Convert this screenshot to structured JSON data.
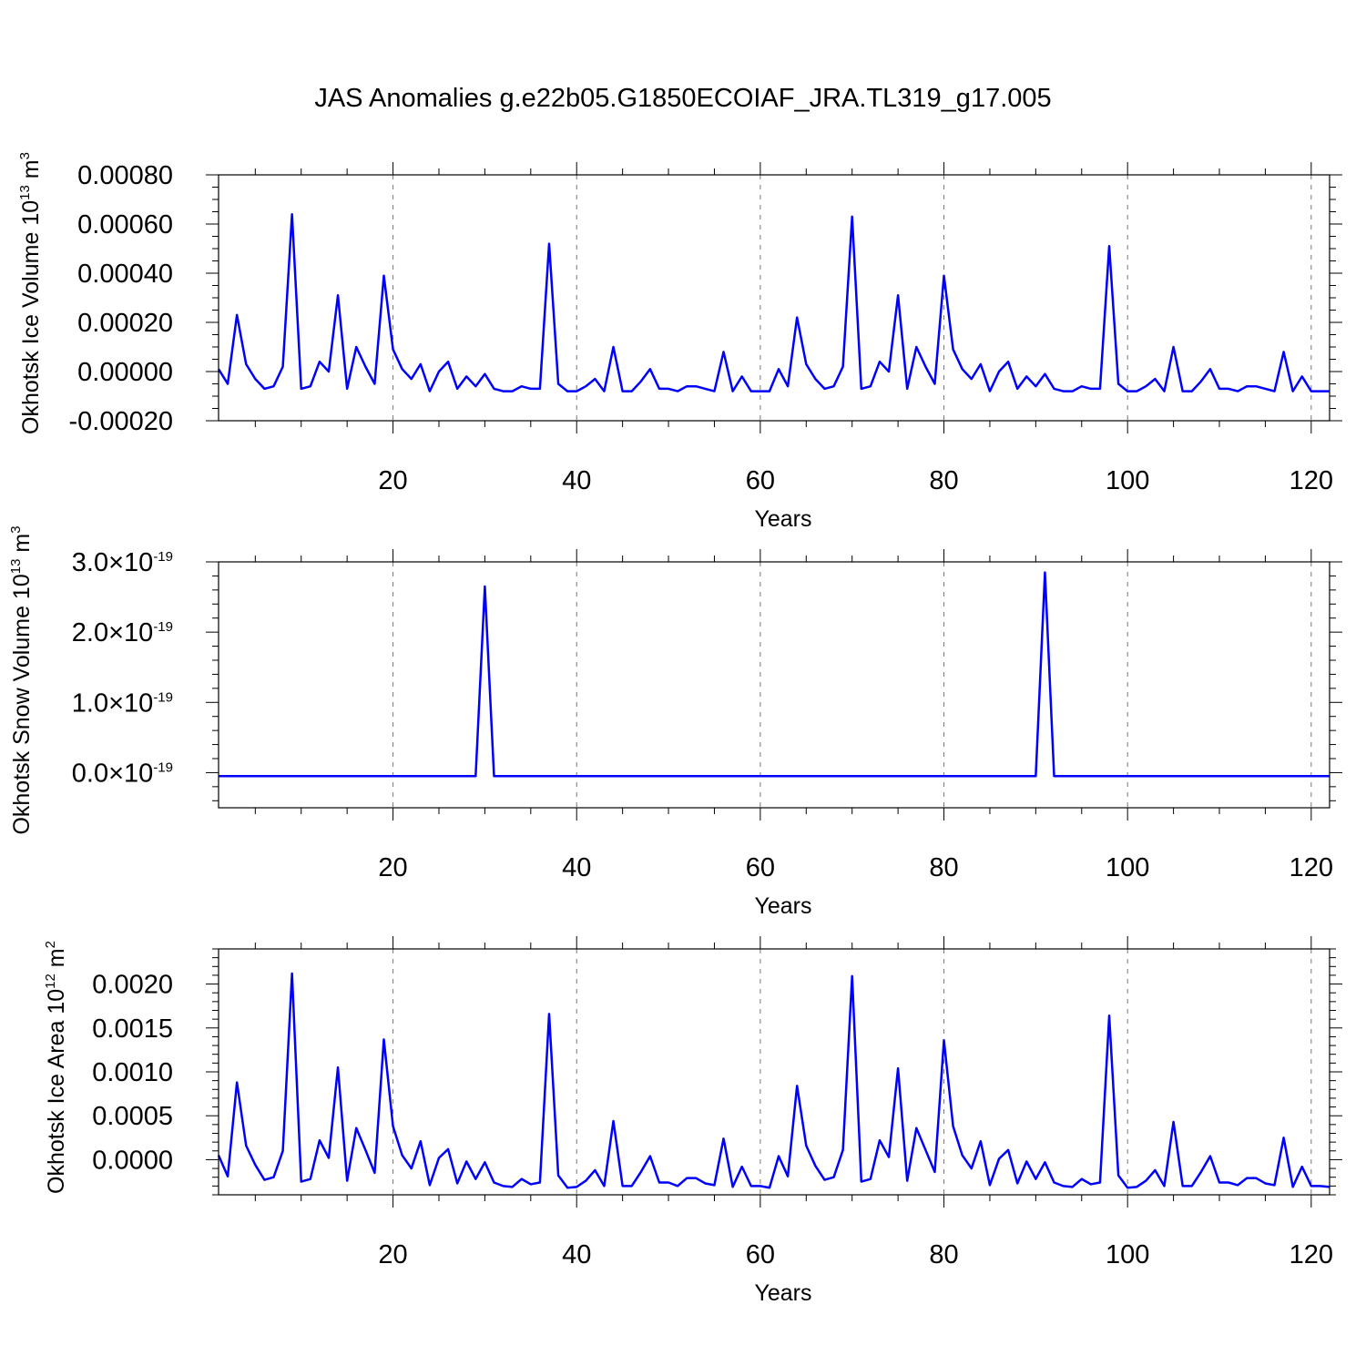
{
  "figure": {
    "title": "JAS Anomalies g.e22b05.G1850ECOIAF_JRA.TL319_g17.005"
  },
  "chart_data": [
    {
      "type": "line",
      "title": "JAS Anomalies g.e22b05.G1850ECOIAF_JRA.TL319_g17.005",
      "xlabel": "Years",
      "ylabel": "Okhotsk Ice Volume 10^13 m^3",
      "ylabel_parts": {
        "prefix": "Okhotsk Ice Volume 10",
        "exp": "13",
        "unit": " m",
        "unit_exp": "3"
      },
      "xlim": [
        1,
        122
      ],
      "ylim": [
        -0.0002,
        0.0008
      ],
      "xticks": [
        20,
        40,
        60,
        80,
        100,
        120
      ],
      "yticks": [
        -0.0002,
        0.0,
        0.0002,
        0.0004,
        0.0006,
        0.0008
      ],
      "ytick_labels": [
        "-0.00020",
        "0.00000",
        "0.00020",
        "0.00040",
        "0.00060",
        "0.00080"
      ],
      "x_minor_step": 5,
      "y_minor_step": 5e-05,
      "grid": "vertical dashed at major x ticks",
      "color": "#0000ff",
      "series": [
        {
          "name": "",
          "values": [
            1e-05,
            -5e-05,
            0.00023,
            3e-05,
            -3e-05,
            -7e-05,
            -6e-05,
            2e-05,
            0.00064,
            -7e-05,
            -6e-05,
            4e-05,
            0.0,
            0.00031,
            -7e-05,
            0.0001,
            2e-05,
            -5e-05,
            0.00039,
            9e-05,
            1e-05,
            -3e-05,
            3e-05,
            -8e-05,
            0.0,
            4e-05,
            -7e-05,
            -2e-05,
            -6e-05,
            -1e-05,
            -7e-05,
            -8e-05,
            -8e-05,
            -6e-05,
            -7e-05,
            -7e-05,
            0.00052,
            -5e-05,
            -8e-05,
            -8e-05,
            -6e-05,
            -3e-05,
            -8e-05,
            0.0001,
            -8e-05,
            -8e-05,
            -4e-05,
            1e-05,
            -7e-05,
            -7e-05,
            -8e-05,
            -6e-05,
            -6e-05,
            -7e-05,
            -8e-05,
            8e-05,
            -8e-05,
            -2e-05,
            -8e-05,
            -8e-05,
            -8e-05,
            1e-05,
            -6e-05,
            0.00022,
            3e-05,
            -3e-05,
            -7e-05,
            -6e-05,
            2e-05,
            0.00063,
            -7e-05,
            -6e-05,
            4e-05,
            0.0,
            0.00031,
            -7e-05,
            0.0001,
            2e-05,
            -5e-05,
            0.00039,
            9e-05,
            1e-05,
            -3e-05,
            3e-05,
            -8e-05,
            0.0,
            4e-05,
            -7e-05,
            -2e-05,
            -6e-05,
            -1e-05,
            -7e-05,
            -8e-05,
            -8e-05,
            -6e-05,
            -7e-05,
            -7e-05,
            0.00051,
            -5e-05,
            -8e-05,
            -8e-05,
            -6e-05,
            -3e-05,
            -8e-05,
            0.0001,
            -8e-05,
            -8e-05,
            -4e-05,
            1e-05,
            -7e-05,
            -7e-05,
            -8e-05,
            -6e-05,
            -6e-05,
            -7e-05,
            -8e-05,
            8e-05,
            -8e-05,
            -2e-05,
            -8e-05,
            -8e-05,
            -8e-05
          ]
        }
      ]
    },
    {
      "type": "line",
      "xlabel": "Years",
      "ylabel": "Okhotsk Snow Volume 10^13 m^3",
      "ylabel_parts": {
        "prefix": "Okhotsk Snow Volume 10",
        "exp": "13",
        "unit": " m",
        "unit_exp": "3"
      },
      "xlim": [
        1,
        122
      ],
      "ylim": [
        -5e-20,
        3e-19
      ],
      "xticks": [
        20,
        40,
        60,
        80,
        100,
        120
      ],
      "yticks": [
        0.0,
        1e-19,
        2e-19,
        3e-19
      ],
      "ytick_labels": [
        {
          "mant": "0.0",
          "exp": "-19"
        },
        {
          "mant": "1.0",
          "exp": "-19"
        },
        {
          "mant": "2.0",
          "exp": "-19"
        },
        {
          "mant": "3.0",
          "exp": "-19"
        }
      ],
      "x_minor_step": 5,
      "y_minor_step": 2e-20,
      "grid": "vertical dashed at major x ticks",
      "color": "#0000ff",
      "series": [
        {
          "name": "",
          "spikes": {
            "30": 2.65e-19,
            "91": 2.85e-19
          },
          "baseline": -5e-21
        }
      ]
    },
    {
      "type": "line",
      "xlabel": "Years",
      "ylabel": "Okhotsk Ice Area 10^12 m^2",
      "ylabel_parts": {
        "prefix": "Okhotsk Ice Area 10",
        "exp": "12",
        "unit": " m",
        "unit_exp": "2"
      },
      "xlim": [
        1,
        122
      ],
      "ylim": [
        -0.0004,
        0.0024
      ],
      "xticks": [
        20,
        40,
        60,
        80,
        100,
        120
      ],
      "yticks": [
        0.0,
        0.0005,
        0.001,
        0.0015,
        0.002
      ],
      "ytick_labels": [
        "0.0000",
        "0.0005",
        "0.0010",
        "0.0015",
        "0.0020"
      ],
      "x_minor_step": 5,
      "y_minor_step": 0.0001,
      "grid": "vertical dashed at major x ticks",
      "color": "#0000ff",
      "series": [
        {
          "name": "",
          "values": [
            5e-05,
            -0.00019,
            0.00088,
            0.00016,
            -6e-05,
            -0.00023,
            -0.0002,
            0.0001,
            0.00212,
            -0.00025,
            -0.00022,
            0.00022,
            2e-05,
            0.00105,
            -0.00024,
            0.00036,
            0.00011,
            -0.00015,
            0.00137,
            0.00038,
            5e-05,
            -0.0001,
            0.00021,
            -0.00029,
            2e-05,
            0.00012,
            -0.00027,
            -2e-05,
            -0.00022,
            -3e-05,
            -0.00026,
            -0.0003,
            -0.00031,
            -0.00022,
            -0.00028,
            -0.00026,
            0.00166,
            -0.00018,
            -0.00032,
            -0.00031,
            -0.00024,
            -0.00012,
            -0.0003,
            0.00044,
            -0.0003,
            -0.0003,
            -0.00014,
            4e-05,
            -0.00026,
            -0.00026,
            -0.0003,
            -0.00021,
            -0.00021,
            -0.00027,
            -0.00029,
            0.00024,
            -0.00031,
            -8e-05,
            -0.0003,
            -0.0003,
            -0.00032,
            4e-05,
            -0.00019,
            0.00084,
            0.00016,
            -7e-05,
            -0.00023,
            -0.0002,
            0.00011,
            0.00209,
            -0.00025,
            -0.00022,
            0.00022,
            3e-05,
            0.00104,
            -0.00024,
            0.00036,
            0.00011,
            -0.00014,
            0.00136,
            0.00038,
            5e-05,
            -0.0001,
            0.00021,
            -0.00029,
            1e-05,
            0.00011,
            -0.00027,
            -2e-05,
            -0.00022,
            -3e-05,
            -0.00026,
            -0.0003,
            -0.00031,
            -0.00022,
            -0.00028,
            -0.00026,
            0.00164,
            -0.00018,
            -0.00032,
            -0.00031,
            -0.00024,
            -0.00012,
            -0.0003,
            0.00043,
            -0.0003,
            -0.0003,
            -0.00014,
            4e-05,
            -0.00026,
            -0.00026,
            -0.00029,
            -0.00021,
            -0.00021,
            -0.00027,
            -0.00029,
            0.00025,
            -0.00031,
            -8e-05,
            -0.0003,
            -0.0003,
            -0.00031
          ]
        }
      ]
    }
  ]
}
